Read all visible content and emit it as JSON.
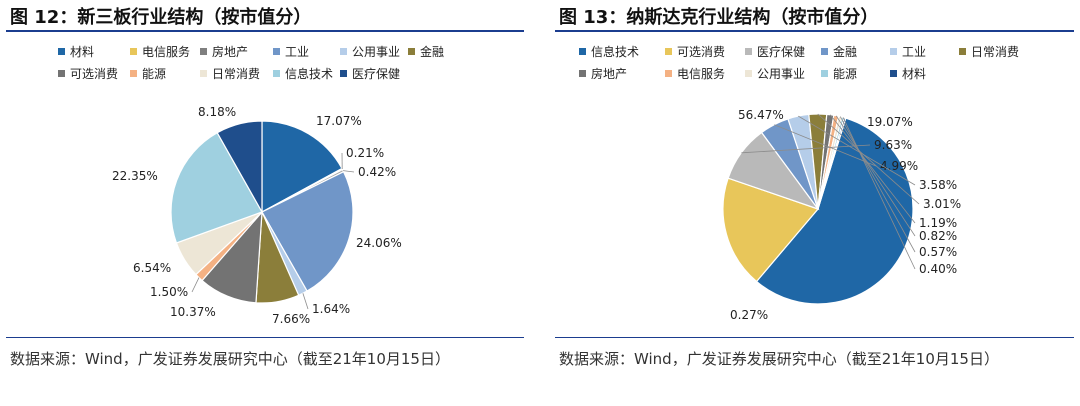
{
  "charts": [
    {
      "title": "图 12：新三板行业结构（按市值分）",
      "source": "数据来源：Wind，广发证券发展研究中心（截至21年10月15日）",
      "legend": [
        {
          "label": "材料",
          "color": "#1f67a6"
        },
        {
          "label": "电信服务",
          "color": "#e8c65a"
        },
        {
          "label": "房地产",
          "color": "#7f7f7f"
        },
        {
          "label": "工业",
          "color": "#7096c8"
        },
        {
          "label": "公用事业",
          "color": "#b5cde9"
        },
        {
          "label": "金融",
          "color": "#8b7e3a"
        },
        {
          "label": "可选消费",
          "color": "#737373"
        },
        {
          "label": "能源",
          "color": "#f4b183"
        },
        {
          "label": "日常消费",
          "color": "#ede6d6"
        },
        {
          "label": "信息技术",
          "color": "#9fd0e0"
        },
        {
          "label": "医疗保健",
          "color": "#1f4e8c"
        }
      ]
    },
    {
      "title": "图 13：纳斯达克行业结构（按市值分）",
      "source": "数据来源：Wind，广发证券发展研究中心（截至21年10月15日）",
      "legend": [
        {
          "label": "信息技术",
          "color": "#1f67a6"
        },
        {
          "label": "可选消费",
          "color": "#e8c65a"
        },
        {
          "label": "医疗保健",
          "color": "#b9b9b9"
        },
        {
          "label": "金融",
          "color": "#7096c8"
        },
        {
          "label": "工业",
          "color": "#b5cde9"
        },
        {
          "label": "日常消费",
          "color": "#8b7e3a"
        },
        {
          "label": "房地产",
          "color": "#737373"
        },
        {
          "label": "电信服务",
          "color": "#f4b183"
        },
        {
          "label": "公用事业",
          "color": "#ede6d6"
        },
        {
          "label": "能源",
          "color": "#9fd0e0"
        },
        {
          "label": "材料",
          "color": "#1f4e8c"
        }
      ]
    }
  ],
  "chart_data": [
    {
      "type": "pie",
      "title": "图 12：新三板行业结构（按市值分）",
      "legend_position": "top",
      "slices": [
        {
          "label": "材料",
          "value": 17.07,
          "value_label": "17.07%",
          "color": "#1f67a6"
        },
        {
          "label": "电信服务",
          "value": 0.21,
          "value_label": "0.21%",
          "color": "#e8c65a"
        },
        {
          "label": "房地产",
          "value": 0.42,
          "value_label": "0.42%",
          "color": "#a6a6a6"
        },
        {
          "label": "工业",
          "value": 24.06,
          "value_label": "24.06%",
          "color": "#7096c8"
        },
        {
          "label": "公用事业",
          "value": 1.64,
          "value_label": "1.64%",
          "color": "#b5cde9"
        },
        {
          "label": "金融",
          "value": 7.66,
          "value_label": "7.66%",
          "color": "#8b7e3a"
        },
        {
          "label": "可选消费",
          "value": 10.37,
          "value_label": "10.37%",
          "color": "#737373"
        },
        {
          "label": "能源",
          "value": 1.5,
          "value_label": "1.50%",
          "color": "#f4b183"
        },
        {
          "label": "日常消费",
          "value": 6.54,
          "value_label": "6.54%",
          "color": "#ede6d6"
        },
        {
          "label": "信息技术",
          "value": 22.35,
          "value_label": "22.35%",
          "color": "#9fd0e0"
        },
        {
          "label": "医疗保健",
          "value": 8.18,
          "value_label": "8.18%",
          "color": "#1f4e8c"
        }
      ]
    },
    {
      "type": "pie",
      "title": "图 13：纳斯达克行业结构（按市值分）",
      "legend_position": "top",
      "slices": [
        {
          "label": "信息技术",
          "value": 56.47,
          "value_label": "56.47%",
          "color": "#1f67a6"
        },
        {
          "label": "可选消费",
          "value": 19.07,
          "value_label": "19.07%",
          "color": "#e8c65a"
        },
        {
          "label": "医疗保健",
          "value": 9.63,
          "value_label": "9.63%",
          "color": "#b9b9b9"
        },
        {
          "label": "金融",
          "value": 4.99,
          "value_label": "4.99%",
          "color": "#7096c8"
        },
        {
          "label": "工业",
          "value": 3.58,
          "value_label": "3.58%",
          "color": "#b5cde9"
        },
        {
          "label": "日常消费",
          "value": 3.01,
          "value_label": "3.01%",
          "color": "#8b7e3a"
        },
        {
          "label": "房地产",
          "value": 1.19,
          "value_label": "1.19%",
          "color": "#737373"
        },
        {
          "label": "电信服务",
          "value": 0.82,
          "value_label": "0.82%",
          "color": "#f4b183"
        },
        {
          "label": "公用事业",
          "value": 0.57,
          "value_label": "0.57%",
          "color": "#ede6d6"
        },
        {
          "label": "能源",
          "value": 0.4,
          "value_label": "0.40%",
          "color": "#9fd0e0"
        },
        {
          "label": "材料",
          "value": 0.27,
          "value_label": "0.27%",
          "color": "#1f4e8c"
        }
      ]
    }
  ]
}
